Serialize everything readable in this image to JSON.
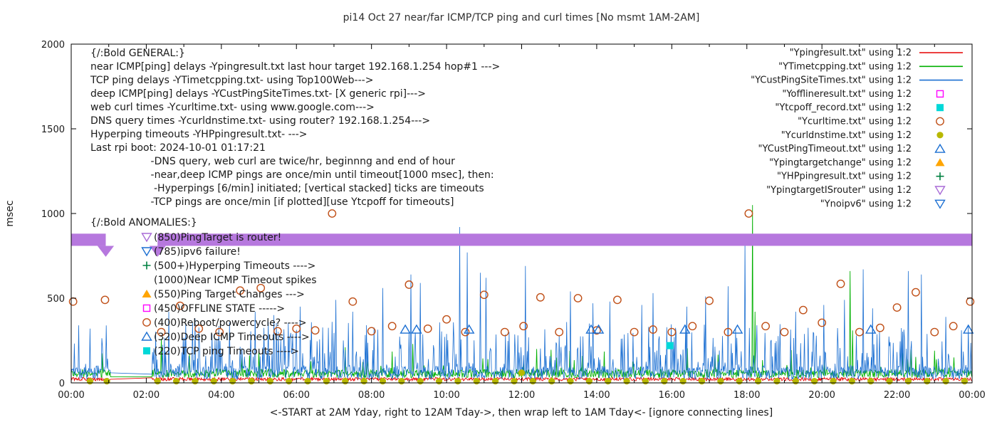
{
  "chart_data": {
    "type": "line",
    "title": "pi14 Oct 27  near/far ICMP/TCP ping and curl times [No msmt 1AM-2AM]",
    "xlabel": "<-START at 2AM Yday, right to 12AM Tday->, then wrap left to 1AM Tday<- [ignore connecting lines]",
    "ylabel": "msec",
    "ylim": [
      0,
      2000
    ],
    "y_ticks": [
      0,
      500,
      1000,
      1500,
      2000
    ],
    "x_range_hours": [
      0,
      24
    ],
    "x_major_tick_step_hours": 2,
    "x_minor_tick_step_hours": 1,
    "x_tick_labels": [
      "00:00",
      "02:00",
      "04:00",
      "06:00",
      "08:00",
      "10:00",
      "12:00",
      "14:00",
      "16:00",
      "18:00",
      "20:00",
      "22:00",
      "00:00"
    ],
    "grid": false,
    "legend_position": "top-right-inside",
    "no_measurement_gap_hours": [
      1.05,
      2.15
    ],
    "noise_seed": 20241027,
    "series": [
      {
        "name": "Ypingresult",
        "legend": "\"Ypingresult.txt\" using 1:2",
        "style": "line",
        "color": "#e60000",
        "width": 0.9,
        "baseline": {
          "mean": 22,
          "jitter": 10
        },
        "spike_prob": 0,
        "spike_max": 0,
        "spikes": []
      },
      {
        "name": "YTimetcpping",
        "legend": "\"YTimetcpping.txt\" using 1:2",
        "style": "line",
        "color": "#00b000",
        "width": 0.9,
        "baseline": {
          "mean": 55,
          "jitter": 25
        },
        "spike_prob": 0.05,
        "spike_max": 150,
        "spikes": [
          [
            2.4,
            260
          ],
          [
            5.0,
            190
          ],
          [
            7.3,
            210
          ],
          [
            9.1,
            230
          ],
          [
            12.4,
            200
          ],
          [
            14.2,
            185
          ],
          [
            18.15,
            1050
          ],
          [
            18.22,
            420
          ],
          [
            20.75,
            660
          ],
          [
            20.82,
            310
          ],
          [
            23.0,
            190
          ]
        ]
      },
      {
        "name": "YCustPingSiteTimes",
        "legend": "\"YCustPingSiteTimes.txt\" using 1:2",
        "style": "line",
        "color": "#1b6fd2",
        "width": 0.8,
        "baseline": {
          "mean": 60,
          "jitter": 40
        },
        "spike_prob": 0.3,
        "spike_max": 300,
        "spikes": [
          [
            0.2,
            340
          ],
          [
            0.5,
            320
          ],
          [
            2.6,
            420
          ],
          [
            3.3,
            380
          ],
          [
            4.9,
            420
          ],
          [
            5.4,
            400
          ],
          [
            6.1,
            450
          ],
          [
            7.05,
            490
          ],
          [
            7.5,
            420
          ],
          [
            8.3,
            560
          ],
          [
            9.05,
            640
          ],
          [
            9.3,
            590
          ],
          [
            10.35,
            920
          ],
          [
            10.55,
            770
          ],
          [
            10.9,
            650
          ],
          [
            11.05,
            620
          ],
          [
            12.1,
            690
          ],
          [
            13.3,
            540
          ],
          [
            13.9,
            470
          ],
          [
            14.35,
            480
          ],
          [
            15.2,
            460
          ],
          [
            15.5,
            530
          ],
          [
            16.4,
            450
          ],
          [
            16.9,
            510
          ],
          [
            17.5,
            570
          ],
          [
            17.95,
            830
          ],
          [
            19.3,
            420
          ],
          [
            20.05,
            460
          ],
          [
            20.6,
            490
          ],
          [
            21.1,
            670
          ],
          [
            21.35,
            440
          ],
          [
            22.3,
            660
          ],
          [
            22.65,
            640
          ],
          [
            23.3,
            390
          ],
          [
            23.9,
            340
          ]
        ]
      },
      {
        "name": "Yofflineresult",
        "legend": "\"Yofflineresult.txt\" using 1:2",
        "style": "points",
        "marker": "square-open",
        "color": "#ff00ff",
        "points": []
      },
      {
        "name": "Ytcpoff_record",
        "legend": "\"Ytcpoff_record.txt\" using 1:2",
        "style": "points",
        "marker": "square-filled",
        "color": "#00d8d8",
        "points": [
          [
            15.95,
            220
          ]
        ]
      },
      {
        "name": "Ycurltime",
        "legend": "\"Ycurltime.txt\" using 1:2",
        "style": "points",
        "marker": "circle-open",
        "color": "#c05018",
        "points": [
          [
            0.05,
            480
          ],
          [
            0.9,
            490
          ],
          [
            2.4,
            300
          ],
          [
            2.9,
            455
          ],
          [
            3.4,
            320
          ],
          [
            3.95,
            300
          ],
          [
            4.5,
            545
          ],
          [
            5.05,
            560
          ],
          [
            5.5,
            305
          ],
          [
            6.0,
            320
          ],
          [
            6.5,
            310
          ],
          [
            6.95,
            1000
          ],
          [
            7.5,
            480
          ],
          [
            8.0,
            305
          ],
          [
            8.55,
            335
          ],
          [
            9.0,
            580
          ],
          [
            9.5,
            320
          ],
          [
            10.0,
            375
          ],
          [
            10.5,
            300
          ],
          [
            11.0,
            520
          ],
          [
            11.55,
            300
          ],
          [
            12.05,
            335
          ],
          [
            12.5,
            505
          ],
          [
            13.0,
            300
          ],
          [
            13.5,
            500
          ],
          [
            14.0,
            310
          ],
          [
            14.55,
            490
          ],
          [
            15.0,
            300
          ],
          [
            15.5,
            315
          ],
          [
            16.0,
            300
          ],
          [
            16.55,
            335
          ],
          [
            17.0,
            485
          ],
          [
            17.5,
            300
          ],
          [
            18.05,
            1000
          ],
          [
            18.5,
            335
          ],
          [
            19.0,
            300
          ],
          [
            19.5,
            430
          ],
          [
            20.0,
            355
          ],
          [
            20.5,
            585
          ],
          [
            21.0,
            300
          ],
          [
            21.55,
            325
          ],
          [
            22.0,
            445
          ],
          [
            22.5,
            535
          ],
          [
            23.0,
            300
          ],
          [
            23.5,
            335
          ],
          [
            23.95,
            480
          ]
        ]
      },
      {
        "name": "Ycurldnstime",
        "legend": "\"Ycurldnstime.txt\" using 1:2",
        "style": "points",
        "marker": "circle-filled",
        "color": "#b8b800",
        "points": [
          [
            0.5,
            10
          ],
          [
            0.95,
            10
          ],
          [
            2.3,
            10
          ],
          [
            2.8,
            10
          ],
          [
            3.3,
            10
          ],
          [
            3.8,
            10
          ],
          [
            4.3,
            10
          ],
          [
            4.8,
            10
          ],
          [
            5.3,
            10
          ],
          [
            5.8,
            10
          ],
          [
            6.3,
            10
          ],
          [
            6.8,
            10
          ],
          [
            7.3,
            10
          ],
          [
            7.8,
            10
          ],
          [
            8.3,
            10
          ],
          [
            8.8,
            10
          ],
          [
            9.3,
            10
          ],
          [
            9.8,
            10
          ],
          [
            10.3,
            10
          ],
          [
            10.8,
            10
          ],
          [
            11.3,
            10
          ],
          [
            11.8,
            10
          ],
          [
            12.0,
            60
          ],
          [
            12.3,
            10
          ],
          [
            12.8,
            10
          ],
          [
            13.3,
            10
          ],
          [
            13.8,
            10
          ],
          [
            14.3,
            10
          ],
          [
            14.8,
            10
          ],
          [
            15.3,
            10
          ],
          [
            15.8,
            10
          ],
          [
            16.3,
            10
          ],
          [
            16.8,
            10
          ],
          [
            17.3,
            10
          ],
          [
            17.8,
            10
          ],
          [
            18.3,
            10
          ],
          [
            18.8,
            10
          ],
          [
            19.3,
            10
          ],
          [
            19.8,
            10
          ],
          [
            20.3,
            10
          ],
          [
            20.8,
            10
          ],
          [
            21.3,
            10
          ],
          [
            21.8,
            10
          ],
          [
            22.3,
            10
          ],
          [
            22.8,
            10
          ],
          [
            23.3,
            10
          ],
          [
            23.8,
            10
          ]
        ]
      },
      {
        "name": "YCustPingTimeout",
        "legend": "\"YCustPingTimeout.txt\" using 1:2",
        "style": "points",
        "marker": "triangle-up-open",
        "color": "#1b6fd2",
        "points": [
          [
            8.9,
            315
          ],
          [
            9.2,
            315
          ],
          [
            10.6,
            315
          ],
          [
            13.85,
            315
          ],
          [
            14.05,
            315
          ],
          [
            16.35,
            315
          ],
          [
            17.75,
            315
          ],
          [
            21.3,
            315
          ],
          [
            23.9,
            315
          ]
        ]
      },
      {
        "name": "Ypingtargetchange",
        "legend": "\"Ypingtargetchange\" using 1:2",
        "style": "points",
        "marker": "triangle-up-filled",
        "color": "#ffa500",
        "points": []
      },
      {
        "name": "YHPpingresult",
        "legend": "\"YHPpingresult.txt\" using 1:2",
        "style": "points",
        "marker": "plus",
        "color": "#008040",
        "points": []
      },
      {
        "name": "YpingtargetISrouter",
        "legend": "\"YpingtargetISrouter\" using 1:2",
        "style": "band",
        "marker": "triangle-down-open",
        "color": "#a86ad6",
        "band": {
          "y": 845,
          "half_height": 36,
          "fill": "#b678de",
          "segments_hours": [
            [
              0,
              0.92
            ],
            [
              2.3,
              24
            ]
          ],
          "notch_centers_hours": [
            0.92,
            2.3
          ],
          "notch_half_width_hours": 0.22,
          "notch_depth": 65
        }
      },
      {
        "name": "Ynoipv6",
        "legend": "\"Ynoipv6\" using 1:2",
        "style": "points",
        "marker": "triangle-down-open",
        "color": "#1b6fd2",
        "points": []
      }
    ]
  },
  "annotations": {
    "general": {
      "heading": "{/:Bold GENERAL:}",
      "lines": [
        "near ICMP[ping] delays -Ypingresult.txt last hour target 192.168.1.254 hop#1 --->",
        "TCP ping delays -YTimetcpping.txt- using Top100Web--->",
        "deep ICMP[ping] delays -YCustPingSiteTimes.txt- [X generic rpi]--->",
        "web curl times -Ycurltime.txt- using www.google.com--->",
        "DNS query times -Ycurldnstime.txt- using router? 192.168.1.254--->",
        "Hyperping timeouts -YHPpingresult.txt- --->",
        "Last rpi boot: 2024-10-01 01:17:21",
        "                   -DNS query, web curl are twice/hr, beginnng and end of hour",
        "                   -near,deep ICMP pings are once/min until timeout[1000 msec], then:",
        "                    -Hyperpings [6/min] initiated; [vertical stacked] ticks are timeouts",
        "                   -TCP pings are once/min [if plotted][use Ytcpoff for timeouts]"
      ]
    },
    "anomalies": {
      "heading": "{/:Bold ANOMALIES:}",
      "items": [
        {
          "marker": "triangle-down-open",
          "color": "#a86ad6",
          "text": "(850)PingTarget is router!"
        },
        {
          "marker": "triangle-down-open",
          "color": "#1b6fd2",
          "text": "(785)ipv6 failure!"
        },
        {
          "marker": "plus",
          "color": "#008040",
          "text": "(500+)Hyperping Timeouts ---->"
        },
        {
          "marker": null,
          "color": null,
          "text": "(1000)Near ICMP Timeout spikes"
        },
        {
          "marker": "triangle-up-filled",
          "color": "#ffa500",
          "text": "(550)Ping Target Changes --->"
        },
        {
          "marker": "square-open",
          "color": "#ff00ff",
          "text": "(450)OFFLINE STATE ----->"
        },
        {
          "marker": "circle-open",
          "color": "#c05018",
          "text": "(400)Reboot/powercycle? ---->"
        },
        {
          "marker": "triangle-up-open",
          "color": "#1b6fd2",
          "text": "(320)Deep ICMP Timeouts ---->"
        },
        {
          "marker": "square-filled",
          "color": "#00d8d8",
          "text": "(220)TCP ping Timeouts ---->"
        }
      ]
    }
  }
}
